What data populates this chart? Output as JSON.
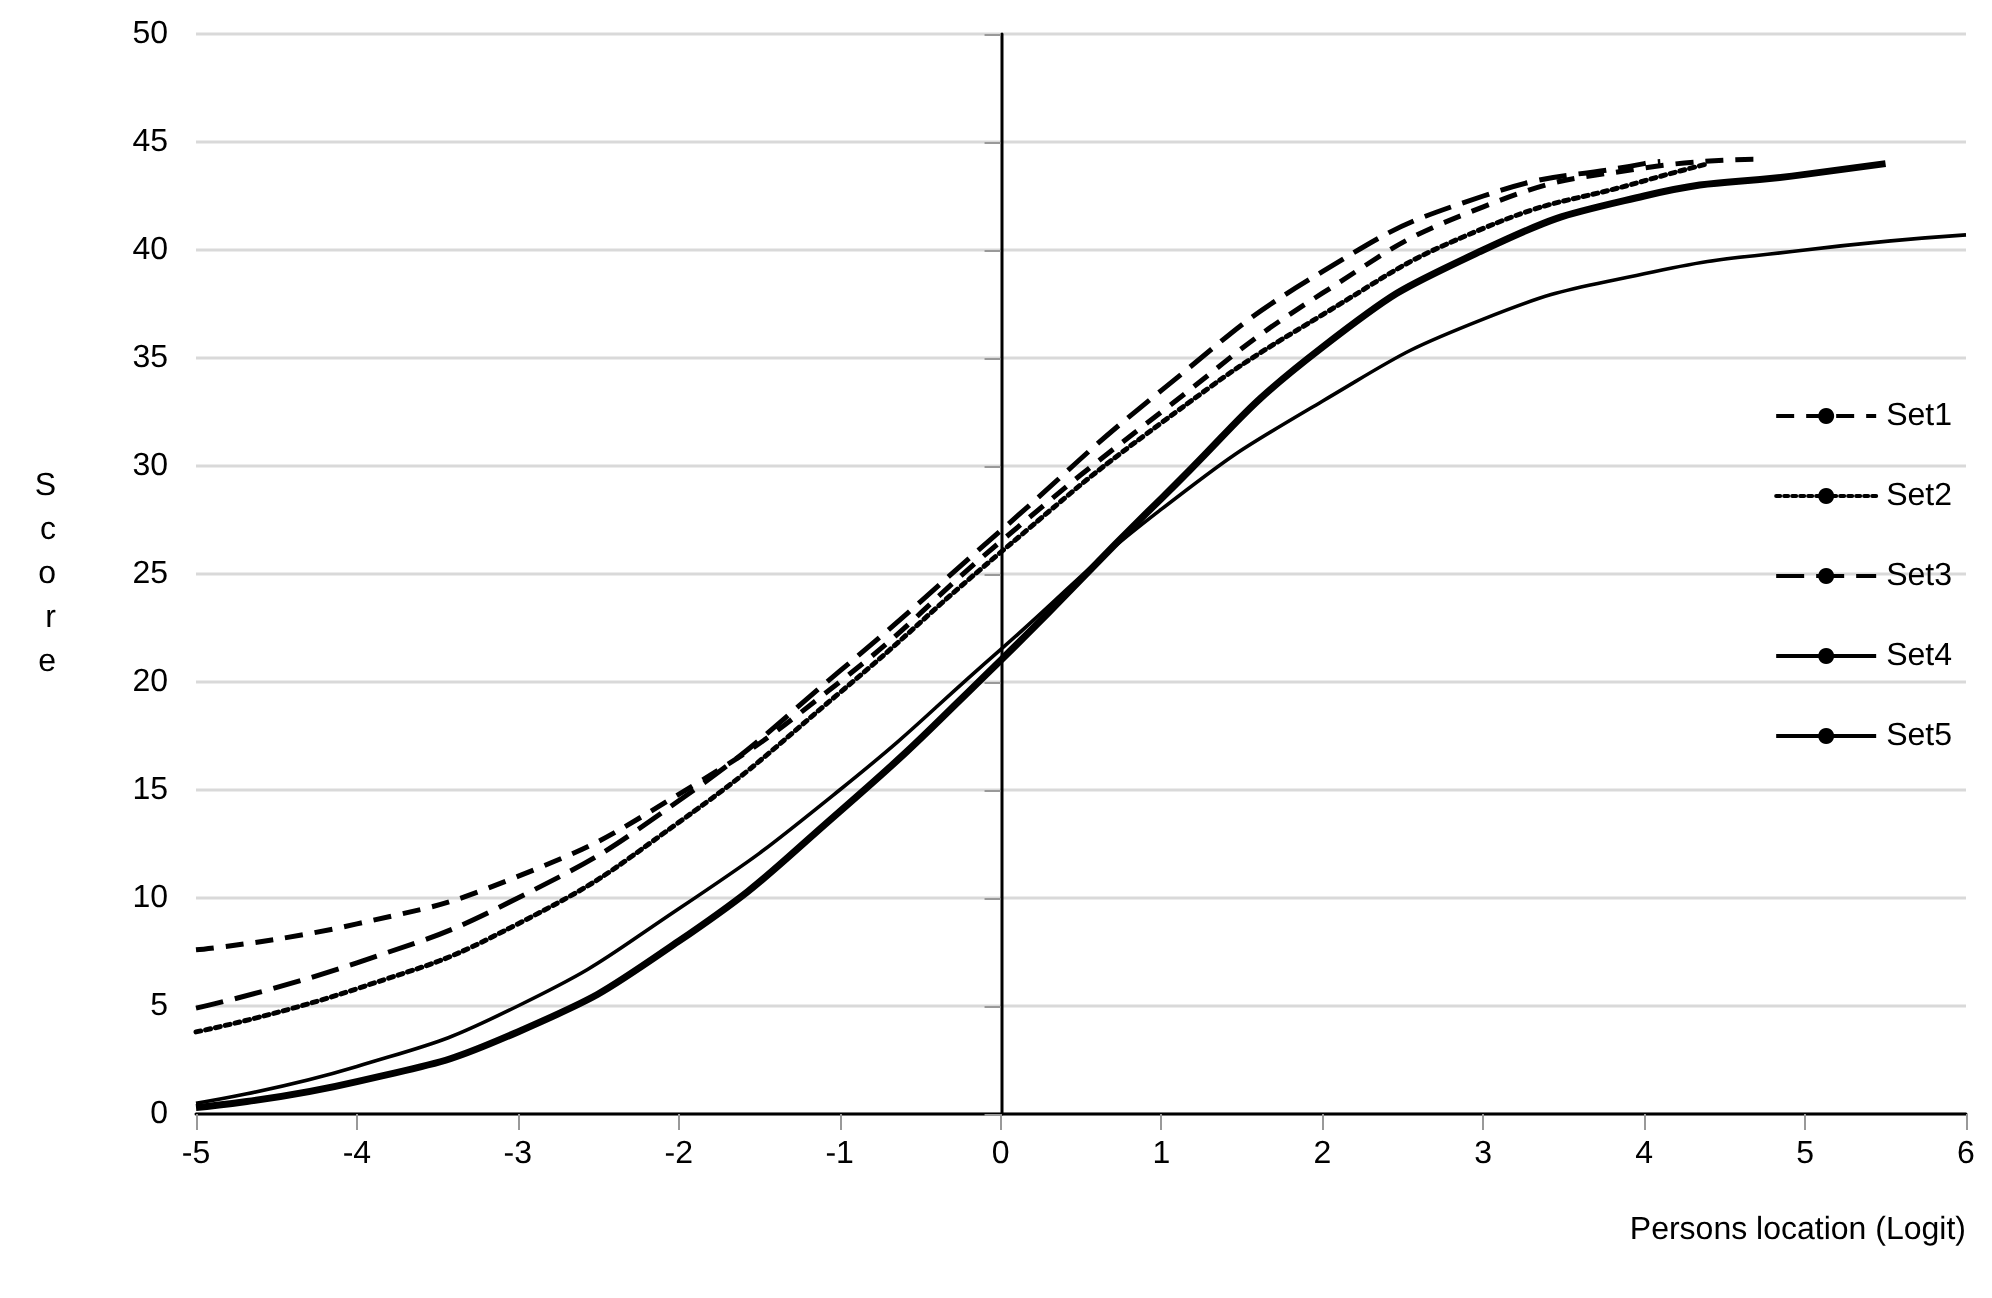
{
  "chart_data": {
    "type": "line",
    "xlabel": "Persons location (Logit)",
    "ylabel": "Score",
    "xlim": [
      -5,
      6
    ],
    "xticks": [
      -5,
      -4,
      -3,
      -2,
      -1,
      0,
      1,
      2,
      3,
      4,
      5,
      6
    ],
    "ylim": [
      0,
      50
    ],
    "yticks": [
      0,
      5,
      10,
      15,
      20,
      25,
      30,
      35,
      40,
      45,
      50
    ],
    "grid": "y",
    "legend": "right",
    "marker": "none",
    "series": [
      {
        "name": "Set1",
        "color": "#000000",
        "line_style": "dashed",
        "x": [
          -5,
          -4,
          -3,
          -2,
          -1,
          0,
          1,
          2,
          3,
          4,
          4.7
        ],
        "values": [
          7.6,
          8.8,
          11,
          14.8,
          20,
          26.5,
          32.5,
          38,
          42,
          43.8,
          44.2
        ]
      },
      {
        "name": "Set2",
        "color": "#000000",
        "line_style": "dotted",
        "x": [
          -5,
          -4,
          -3,
          -2,
          -1,
          0,
          1,
          2,
          3,
          4,
          4.4
        ],
        "values": [
          3.8,
          5.8,
          8.8,
          13.5,
          19.5,
          26,
          32,
          37,
          41,
          43.2,
          44
        ]
      },
      {
        "name": "Set3",
        "color": "#000000",
        "line_style": "dashed",
        "x": [
          -5,
          -4,
          -3,
          -2,
          -1,
          0,
          1,
          2,
          3,
          4,
          4.1
        ],
        "values": [
          4.9,
          7,
          10,
          14.5,
          20.5,
          27,
          33.5,
          39,
          42.5,
          44,
          44.1
        ]
      },
      {
        "name": "Set4",
        "color": "#000000",
        "line_style": "solid",
        "x": [
          -5,
          -4,
          -3,
          -2,
          -1,
          0,
          1,
          2,
          3,
          4,
          5,
          6
        ],
        "values": [
          0.5,
          2.2,
          5,
          9.5,
          15,
          21.5,
          28,
          33,
          36.8,
          38.9,
          40,
          40.7
        ]
      },
      {
        "name": "Set5",
        "color": "#000000",
        "line_style": "solid",
        "x": [
          -5,
          -4,
          -3,
          -2,
          -1,
          0,
          1,
          2,
          3,
          4,
          5,
          5.5
        ],
        "values": [
          0.3,
          1.5,
          3.8,
          8,
          14,
          21,
          28.5,
          35.5,
          40,
          42.5,
          43.5,
          44
        ]
      }
    ]
  }
}
